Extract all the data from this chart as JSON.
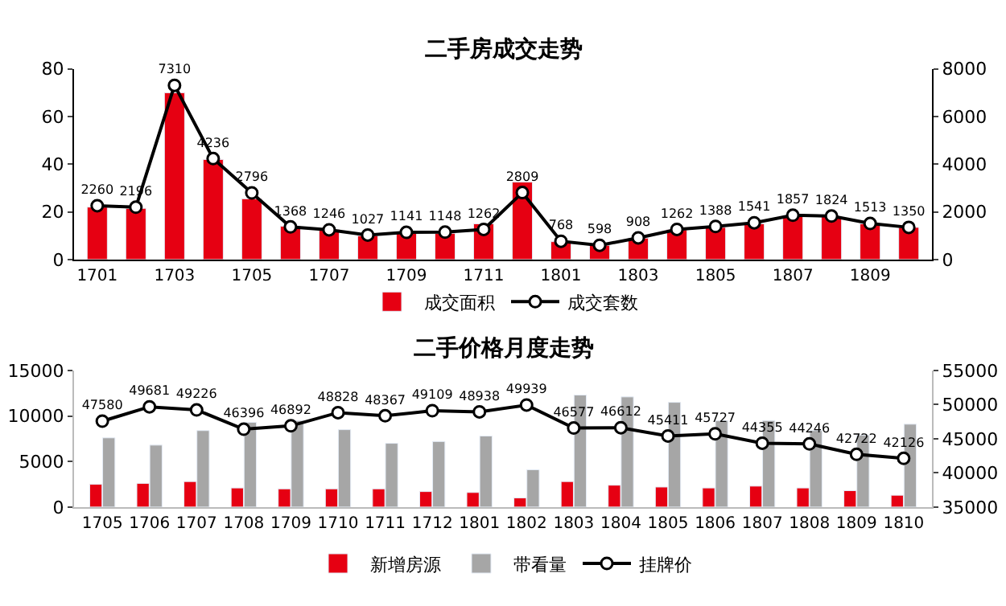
{
  "chart_data": [
    {
      "type": "bar",
      "title": "二手房成交走势",
      "categories": [
        "1701",
        null,
        "1703",
        null,
        "1705",
        null,
        "1707",
        null,
        "1709",
        null,
        "1711",
        null,
        "1801",
        null,
        "1803",
        null,
        "1805",
        null,
        "1807",
        null,
        "1809",
        null
      ],
      "series": [
        {
          "name": "成交面积",
          "color": "#e60012",
          "values": [
            22,
            21.5,
            70,
            42,
            25.5,
            14,
            12.5,
            10,
            11,
            11,
            15,
            32.5,
            7.5,
            6,
            9,
            12.5,
            13.5,
            15,
            18.5,
            18,
            15,
            13.5
          ]
        },
        {
          "name": "成交套数",
          "type": "line",
          "axis": "y2",
          "color": "#000000",
          "marker": "circle",
          "values": [
            2260,
            2196,
            7310,
            4236,
            2796,
            1368,
            1246,
            1027,
            1141,
            1148,
            1262,
            2809,
            768,
            598,
            908,
            1262,
            1388,
            1541,
            1857,
            1824,
            1513,
            1350
          ],
          "value_labels": [
            "2260",
            "2196",
            "7310",
            "4236",
            "2796",
            "1368",
            "1246",
            "1027",
            "1141",
            "1148",
            "1262",
            "2809",
            "768",
            "598",
            "908",
            "1262",
            "1388",
            "1541",
            "1857",
            "1824",
            "1513",
            "1350"
          ]
        }
      ],
      "ylim": [
        0,
        80
      ],
      "yticks": [
        0,
        20,
        40,
        60,
        80
      ],
      "y2lim": [
        0,
        8000
      ],
      "y2ticks": [
        0,
        2000,
        4000,
        6000,
        8000
      ],
      "legend": "bottom"
    },
    {
      "type": "bar",
      "title": "二手价格月度走势",
      "categories": [
        "1705",
        "1706",
        "1707",
        "1708",
        "1709",
        "1710",
        "1711",
        "1712",
        "1801",
        "1802",
        "1803",
        "1804",
        "1805",
        "1806",
        "1807",
        "1808",
        "1809",
        "1810"
      ],
      "series": [
        {
          "name": "新增房源",
          "color": "#e60012",
          "values": [
            2500,
            2600,
            2800,
            2100,
            2000,
            2000,
            2000,
            1700,
            1600,
            1000,
            2800,
            2400,
            2200,
            2100,
            2300,
            2100,
            1800,
            1300
          ]
        },
        {
          "name": "带看量",
          "color": "#a6a6a6",
          "values": [
            7600,
            6800,
            8400,
            9300,
            9500,
            8500,
            7000,
            7200,
            7800,
            4100,
            12300,
            12100,
            11500,
            9500,
            9500,
            8400,
            7900,
            9100
          ]
        },
        {
          "name": "挂牌价",
          "type": "line",
          "axis": "y2",
          "color": "#000000",
          "marker": "circle",
          "values": [
            47580,
            49681,
            49226,
            46396,
            46892,
            48828,
            48367,
            49109,
            48938,
            49939,
            46577,
            46612,
            45411,
            45727,
            44355,
            44246,
            42722,
            42126
          ],
          "value_labels": [
            "47580",
            "49681",
            "49226",
            "46396",
            "46892",
            "48828",
            "48367",
            "49109",
            "48938",
            "49939",
            "46577",
            "46612",
            "45411",
            "45727",
            "44355",
            "44246",
            "42722",
            "42126"
          ]
        }
      ],
      "ylim": [
        0,
        15000
      ],
      "yticks": [
        0,
        5000,
        10000,
        15000
      ],
      "y2lim": [
        35000,
        55000
      ],
      "y2ticks": [
        35000,
        40000,
        45000,
        50000,
        55000
      ],
      "legend": "bottom"
    }
  ]
}
